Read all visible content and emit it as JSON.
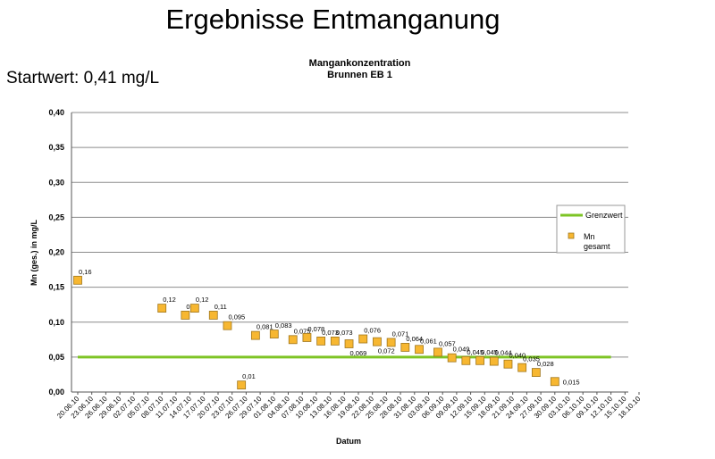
{
  "slide": {
    "title": "Ergebnisse Entmanganung",
    "startwert": "Startwert: 0,41 mg/L"
  },
  "chart_data": {
    "type": "scatter",
    "title": [
      "Mangankonzentration",
      "Brunnen EB 1"
    ],
    "xlabel": "Datum",
    "ylabel": "Mn (ges.) in mg/L",
    "ylim": [
      0,
      0.4
    ],
    "yticks": [
      "0,00",
      "0,05",
      "0,10",
      "0,15",
      "0,20",
      "0,25",
      "0,30",
      "0,35",
      "0,40"
    ],
    "grid": true,
    "legend_position": "right",
    "x_categories": [
      "20.06.10",
      "23.06.10",
      "26.06.10",
      "29.06.10",
      "02.07.10",
      "05.07.10",
      "08.07.10",
      "11.07.10",
      "14.07.10",
      "17.07.10",
      "20.07.10",
      "23.07.10",
      "26.07.10",
      "29.07.10",
      "01.08.10",
      "04.08.10",
      "07.08.10",
      "10.08.10",
      "13.08.10",
      "16.08.10",
      "19.08.10",
      "22.08.10",
      "25.08.10",
      "28.08.10",
      "31.08.10",
      "03.09.10",
      "06.09.10",
      "09.09.10",
      "12.09.10",
      "15.09.10",
      "18.09.10",
      "21.09.10",
      "24.09.10",
      "27.09.10",
      "30.09.10",
      "03.10.10",
      "06.10.10",
      "09.10.10",
      "12.10.10",
      "15.10.10",
      "18.10.10"
    ],
    "series": [
      {
        "name": "Grenzwert",
        "style": "line",
        "color": "#7dc424",
        "x": [
          "20.06.10",
          "12.10.10"
        ],
        "y": [
          0.05,
          0.05
        ]
      },
      {
        "name": "Mn gesamt",
        "style": "marker",
        "color": "#f7b731",
        "points": [
          {
            "x": "20.06.10",
            "y": 0.16,
            "label": "0,16"
          },
          {
            "x": "08.07.10",
            "y": 0.12,
            "label": "0,12"
          },
          {
            "x": "13.07.10",
            "y": 0.11,
            "label": "0,11"
          },
          {
            "x": "15.07.10",
            "y": 0.12,
            "label": "0,12"
          },
          {
            "x": "19.07.10",
            "y": 0.11,
            "label": "0,11"
          },
          {
            "x": "22.07.10",
            "y": 0.095,
            "label": "0,095"
          },
          {
            "x": "25.07.10",
            "y": 0.01,
            "label": "0,01"
          },
          {
            "x": "28.07.10",
            "y": 0.081,
            "label": "0,081"
          },
          {
            "x": "01.08.10",
            "y": 0.083,
            "label": "0,083"
          },
          {
            "x": "05.08.10",
            "y": 0.075,
            "label": "0,075"
          },
          {
            "x": "08.08.10",
            "y": 0.078,
            "label": "0,078"
          },
          {
            "x": "11.08.10",
            "y": 0.073,
            "label": "0,073"
          },
          {
            "x": "14.08.10",
            "y": 0.073,
            "label": "0,073"
          },
          {
            "x": "17.08.10",
            "y": 0.069,
            "label": "0,069"
          },
          {
            "x": "20.08.10",
            "y": 0.076,
            "label": "0,076"
          },
          {
            "x": "23.08.10",
            "y": 0.072,
            "label": "0,072"
          },
          {
            "x": "26.08.10",
            "y": 0.071,
            "label": "0,071"
          },
          {
            "x": "29.08.10",
            "y": 0.064,
            "label": "0,064"
          },
          {
            "x": "01.09.10",
            "y": 0.061,
            "label": "0,061"
          },
          {
            "x": "05.09.10",
            "y": 0.057,
            "label": "0,057"
          },
          {
            "x": "08.09.10",
            "y": 0.049,
            "label": "0,049"
          },
          {
            "x": "11.09.10",
            "y": 0.045,
            "label": "0,045"
          },
          {
            "x": "14.09.10",
            "y": 0.045,
            "label": "0,045"
          },
          {
            "x": "17.09.10",
            "y": 0.044,
            "label": "0,044"
          },
          {
            "x": "20.09.10",
            "y": 0.04,
            "label": "0,040"
          },
          {
            "x": "23.09.10",
            "y": 0.035,
            "label": "0,035"
          },
          {
            "x": "26.09.10",
            "y": 0.028,
            "label": "0,028"
          },
          {
            "x": "30.09.10",
            "y": 0.015,
            "label": "0,015"
          }
        ]
      }
    ],
    "legend": [
      {
        "label": "Grenzwert"
      },
      {
        "label": [
          "Mn",
          "gesamt"
        ]
      }
    ]
  }
}
